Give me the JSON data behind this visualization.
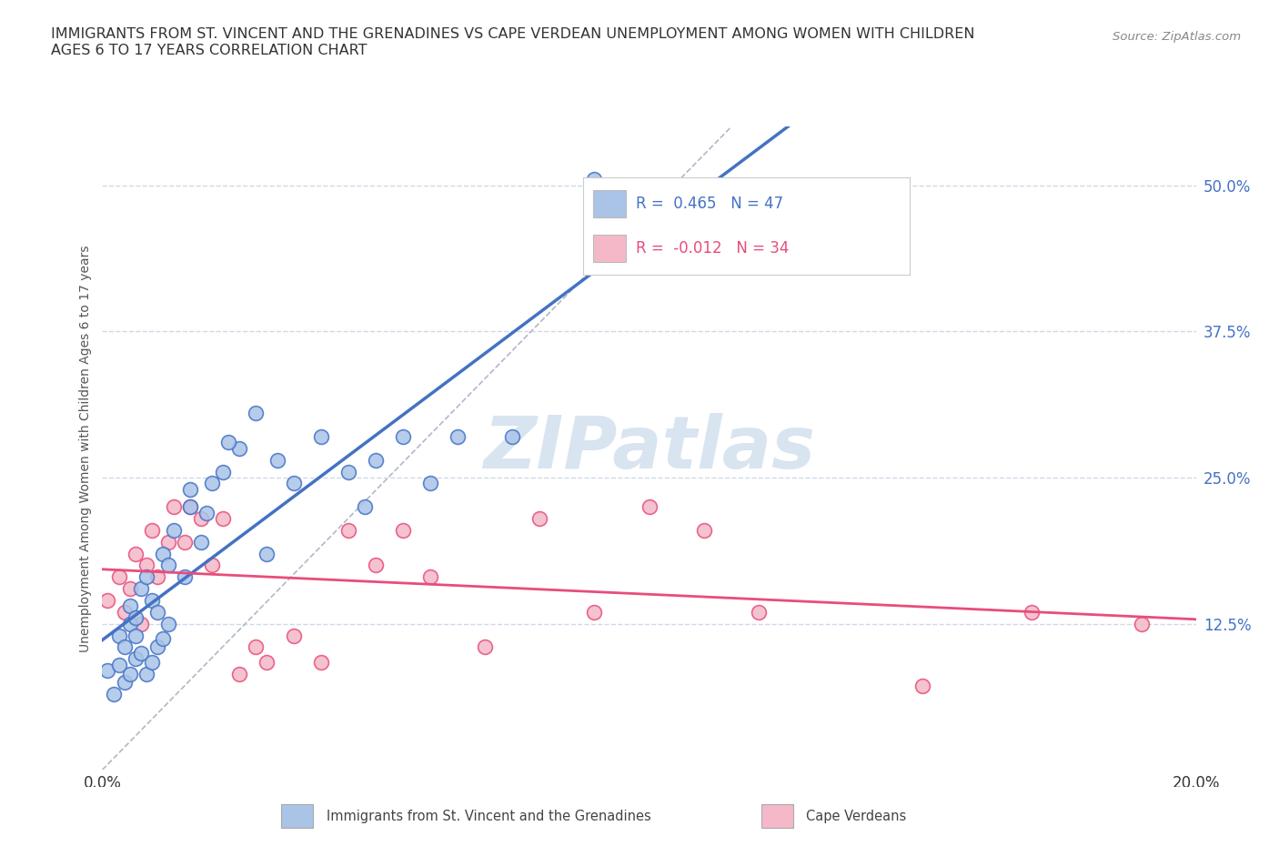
{
  "title_line1": "IMMIGRANTS FROM ST. VINCENT AND THE GRENADINES VS CAPE VERDEAN UNEMPLOYMENT AMONG WOMEN WITH CHILDREN",
  "title_line2": "AGES 6 TO 17 YEARS CORRELATION CHART",
  "source_text": "Source: ZipAtlas.com",
  "ylabel": "Unemployment Among Women with Children Ages 6 to 17 years",
  "xlim": [
    0.0,
    0.2
  ],
  "ylim": [
    0.0,
    0.55
  ],
  "xticks": [
    0.0,
    0.05,
    0.1,
    0.15,
    0.2
  ],
  "xtick_labels": [
    "0.0%",
    "",
    "",
    "",
    "20.0%"
  ],
  "yticks_right": [
    0.125,
    0.25,
    0.375,
    0.5
  ],
  "ytick_right_labels": [
    "12.5%",
    "25.0%",
    "37.5%",
    "50.0%"
  ],
  "legend_entries": [
    {
      "label": "Immigrants from St. Vincent and the Grenadines",
      "color": "#aac4e8",
      "edge": "#4472c4",
      "R": "0.465",
      "N": "47",
      "R_color": "#4472c4"
    },
    {
      "label": "Cape Verdeans",
      "color": "#f4b8c8",
      "edge": "#e05070",
      "R": "-0.012",
      "N": "34",
      "R_color": "#e84d7a"
    }
  ],
  "blue_scatter_x": [
    0.001,
    0.002,
    0.003,
    0.003,
    0.004,
    0.004,
    0.005,
    0.005,
    0.005,
    0.006,
    0.006,
    0.006,
    0.007,
    0.007,
    0.008,
    0.008,
    0.009,
    0.009,
    0.01,
    0.01,
    0.011,
    0.011,
    0.012,
    0.013,
    0.015,
    0.016,
    0.018,
    0.02,
    0.022,
    0.025,
    0.028,
    0.03,
    0.032,
    0.035,
    0.04,
    0.045,
    0.048,
    0.05,
    0.055,
    0.06,
    0.065,
    0.075,
    0.09,
    0.012,
    0.016,
    0.019,
    0.023
  ],
  "blue_scatter_y": [
    0.085,
    0.065,
    0.09,
    0.115,
    0.075,
    0.105,
    0.082,
    0.125,
    0.14,
    0.095,
    0.115,
    0.13,
    0.1,
    0.155,
    0.082,
    0.165,
    0.092,
    0.145,
    0.105,
    0.135,
    0.112,
    0.185,
    0.125,
    0.205,
    0.165,
    0.225,
    0.195,
    0.245,
    0.255,
    0.275,
    0.305,
    0.185,
    0.265,
    0.245,
    0.285,
    0.255,
    0.225,
    0.265,
    0.285,
    0.245,
    0.285,
    0.285,
    0.505,
    0.175,
    0.24,
    0.22,
    0.28
  ],
  "pink_scatter_x": [
    0.001,
    0.003,
    0.004,
    0.005,
    0.006,
    0.007,
    0.008,
    0.009,
    0.01,
    0.012,
    0.013,
    0.015,
    0.016,
    0.018,
    0.02,
    0.022,
    0.025,
    0.028,
    0.03,
    0.035,
    0.04,
    0.045,
    0.05,
    0.055,
    0.06,
    0.07,
    0.08,
    0.09,
    0.1,
    0.11,
    0.12,
    0.15,
    0.17,
    0.19
  ],
  "pink_scatter_y": [
    0.145,
    0.165,
    0.135,
    0.155,
    0.185,
    0.125,
    0.175,
    0.205,
    0.165,
    0.195,
    0.225,
    0.195,
    0.225,
    0.215,
    0.175,
    0.215,
    0.082,
    0.105,
    0.092,
    0.115,
    0.092,
    0.205,
    0.175,
    0.205,
    0.165,
    0.105,
    0.215,
    0.135,
    0.225,
    0.205,
    0.135,
    0.072,
    0.135,
    0.125
  ],
  "blue_line_color": "#4472c4",
  "pink_line_color": "#e84d7a",
  "blue_dot_color": "#aac4e8",
  "pink_dot_color": "#f4b8c8",
  "grid_color": "#d0d8e8",
  "watermark": "ZIPatlas",
  "watermark_color": "#d8e4f0"
}
